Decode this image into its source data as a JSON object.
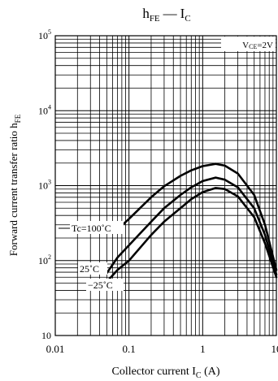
{
  "chart_data": {
    "type": "line",
    "title": "hFE — IC",
    "title_parts": {
      "main": "h",
      "main_sub": "FE",
      "sep": "—",
      "rhs": "I",
      "rhs_sub": "C"
    },
    "xlabel": "Collector current  IC  (A)",
    "xlabel_parts": {
      "pre": "Collector current  I",
      "sub": "C",
      "post": "  (A)"
    },
    "ylabel": "Forward current transfer ratio  hFE",
    "ylabel_parts": {
      "main": "Forward current transfer ratio  h",
      "sub": "FE"
    },
    "x_scale": "log",
    "y_scale": "log",
    "xlim": [
      0.01,
      10
    ],
    "ylim": [
      10,
      100000
    ],
    "grid": true,
    "x_ticks": [
      {
        "value": 0.01,
        "label": "0.01"
      },
      {
        "value": 0.1,
        "label": "0.1"
      },
      {
        "value": 1,
        "label": "1"
      },
      {
        "value": 10,
        "label": "10"
      }
    ],
    "y_ticks": [
      {
        "value": 10,
        "base": "10",
        "exp": ""
      },
      {
        "value": 100,
        "base": "10",
        "exp": "2"
      },
      {
        "value": 1000,
        "base": "10",
        "exp": "3"
      },
      {
        "value": 10000,
        "base": "10",
        "exp": "4"
      },
      {
        "value": 100000,
        "base": "10",
        "exp": "5"
      }
    ],
    "condition": {
      "main": "V",
      "sub": "CE",
      "post": "=2V"
    },
    "series": [
      {
        "name": "Tc=100˚C",
        "x": [
          0.07,
          0.1,
          0.2,
          0.3,
          0.5,
          0.7,
          1.0,
          1.5,
          2.0,
          3.0,
          5.0,
          7.0,
          10.0
        ],
        "y": [
          260,
          360,
          700,
          980,
          1350,
          1600,
          1820,
          1950,
          1850,
          1450,
          750,
          300,
          75
        ]
      },
      {
        "name": "25˚C",
        "x": [
          0.05,
          0.07,
          0.1,
          0.2,
          0.3,
          0.5,
          0.7,
          1.0,
          1.5,
          2.0,
          3.0,
          5.0,
          7.0,
          10.0
        ],
        "y": [
          68,
          110,
          160,
          330,
          500,
          750,
          950,
          1150,
          1280,
          1200,
          950,
          500,
          220,
          65
        ]
      },
      {
        "name": "−25˚C",
        "x": [
          0.05,
          0.07,
          0.1,
          0.2,
          0.3,
          0.5,
          0.7,
          1.0,
          1.5,
          2.0,
          3.0,
          5.0,
          7.0,
          10.0
        ],
        "y": [
          52,
          75,
          100,
          220,
          330,
          500,
          660,
          820,
          930,
          900,
          720,
          380,
          170,
          60
        ]
      }
    ]
  }
}
